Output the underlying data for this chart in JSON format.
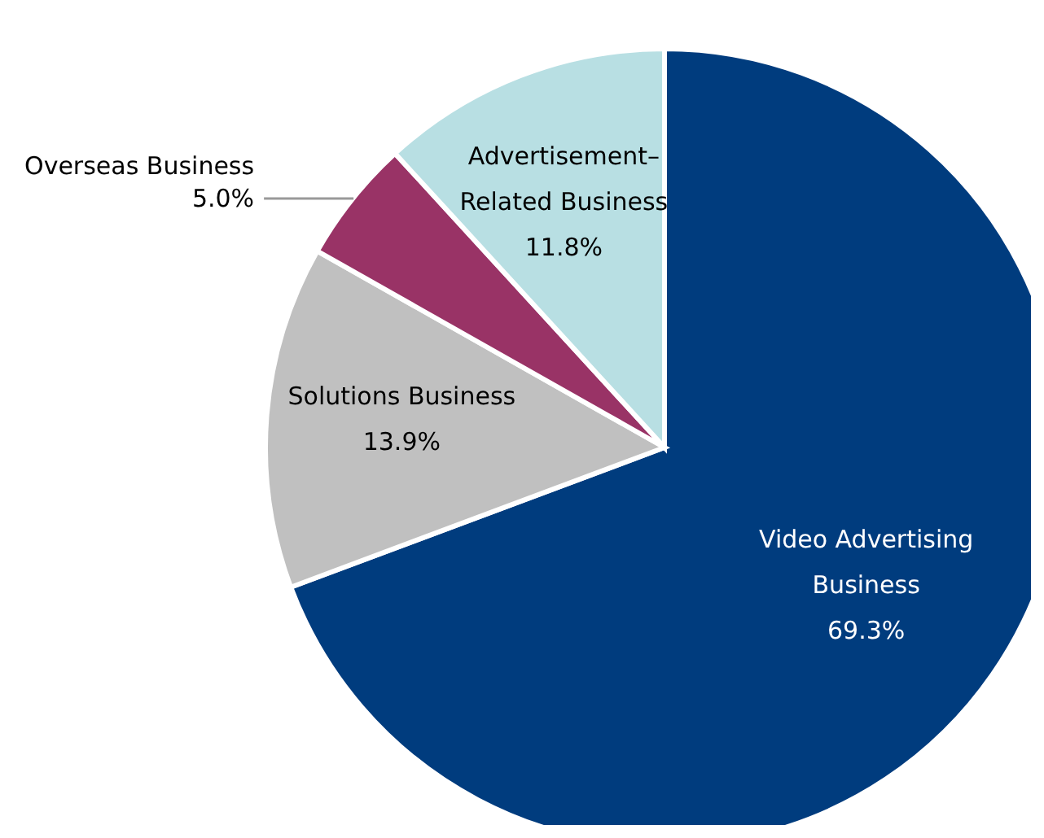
{
  "chart_data": {
    "type": "pie",
    "categories": [
      "Video Advertising Business",
      "Solutions Business",
      "Overseas Business",
      "Advertisement–Related Business"
    ],
    "values": [
      69.3,
      13.9,
      5.0,
      11.8
    ],
    "colors": [
      "#003c7e",
      "#c0c0c0",
      "#993366",
      "#b8dfe3"
    ],
    "value_labels": [
      "69.3%",
      "13.9%",
      "5.0%",
      "11.8%"
    ]
  }
}
